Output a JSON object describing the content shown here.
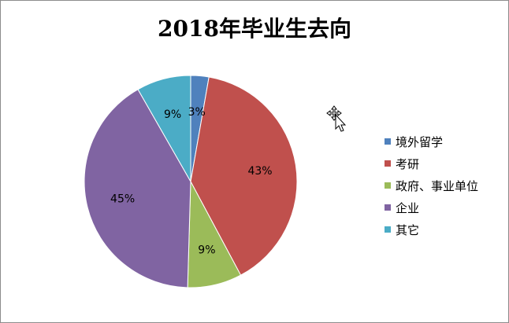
{
  "chart_data": {
    "type": "pie",
    "title": "2018年毕业生去向",
    "categories": [
      "境外留学",
      "考研",
      "政府、事业单位",
      "企业",
      "其它"
    ],
    "values": [
      3,
      43,
      9,
      45,
      9
    ],
    "labels": [
      "3%",
      "43%",
      "9%",
      "45%",
      "9%"
    ],
    "colors": [
      "#4F81BD",
      "#C0504D",
      "#9BBB59",
      "#8064A2",
      "#4BACC6"
    ],
    "legend_position": "right",
    "start_angle": "12 o'clock",
    "direction": "clockwise"
  },
  "cursor": {
    "icon": "move-arrow-cursor-icon"
  }
}
